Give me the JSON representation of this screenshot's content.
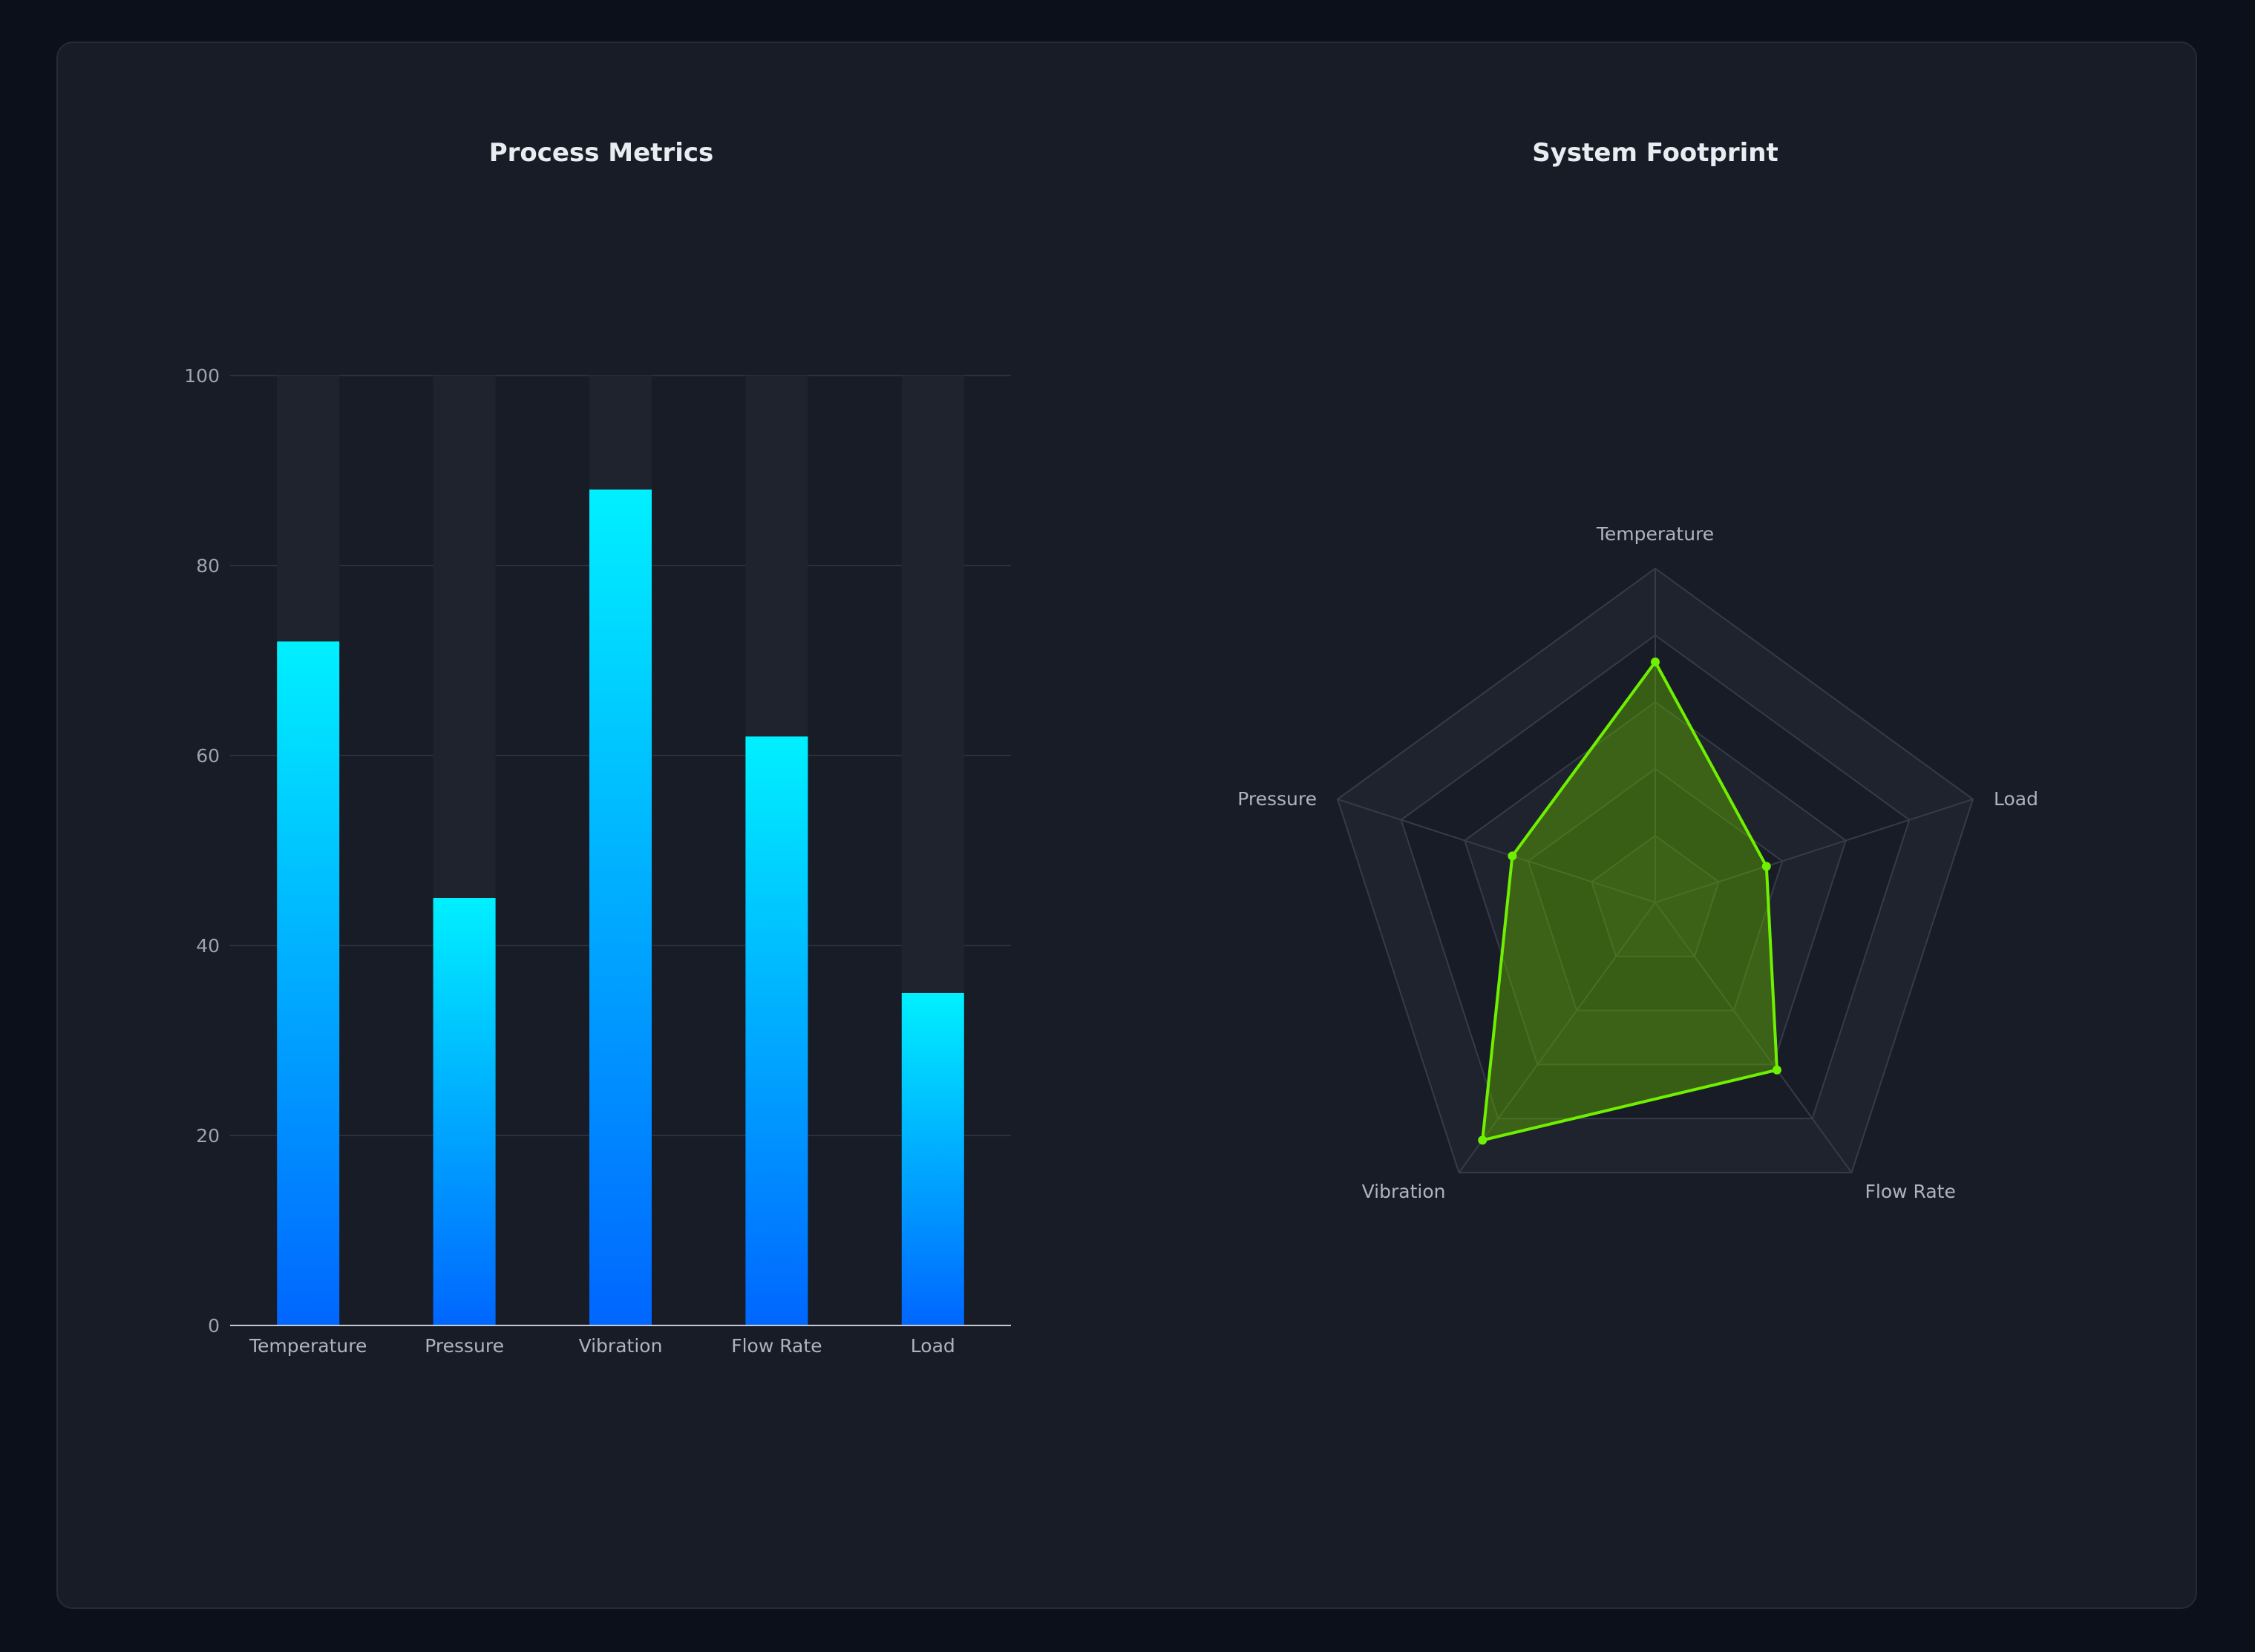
{
  "colors": {
    "page_background": "#0b101b",
    "panel_background": "#181c27",
    "bar_gradient_top": "#00f0ff",
    "bar_gradient_bottom": "#0066ff",
    "bar_track": "#1f232d",
    "radar_line": "#6ff000",
    "radar_fill": "#5fb000"
  },
  "chart_data": [
    {
      "type": "bar",
      "title": "Process Metrics",
      "categories": [
        "Temperature",
        "Pressure",
        "Vibration",
        "Flow Rate",
        "Load"
      ],
      "values": [
        72,
        45,
        88,
        62,
        35
      ],
      "ylim": [
        0,
        100
      ],
      "yticks": [
        0,
        20,
        40,
        60,
        80,
        100
      ],
      "grid": true,
      "background_track": true
    },
    {
      "type": "radar",
      "title": "System Footprint",
      "axes": [
        "Temperature",
        "Load",
        "Flow Rate",
        "Vibration",
        "Pressure"
      ],
      "values": [
        72,
        35,
        62,
        88,
        45
      ],
      "range": [
        0,
        100
      ],
      "rings": 5
    }
  ]
}
